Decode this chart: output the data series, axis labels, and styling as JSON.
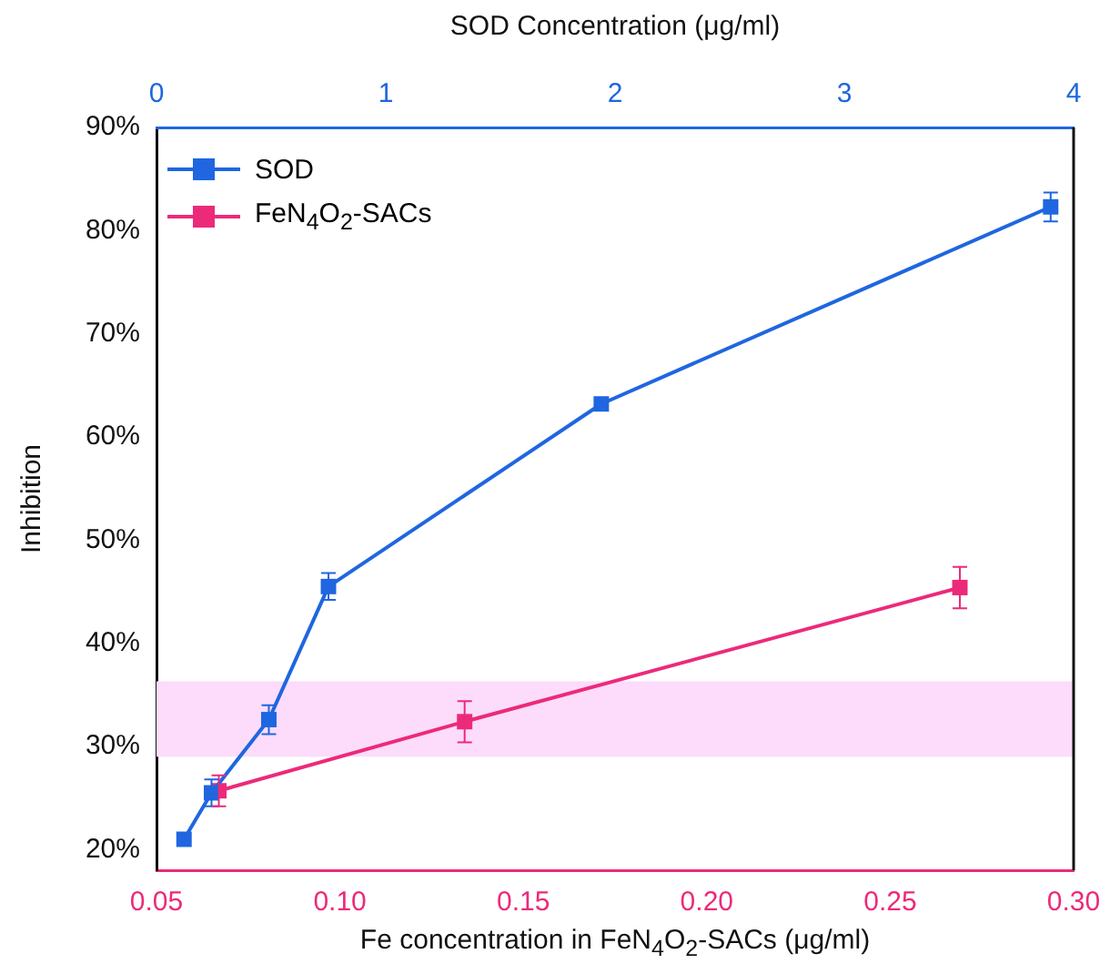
{
  "chart_data": {
    "type": "line",
    "xlabel": "Fe concentration in FeN$_{4}$O$_{2}$-SACs (μg/ml)",
    "x2label": "SOD Concentration (μg/ml)",
    "ylabel": "Inhibition",
    "xlim": [
      0.05,
      0.3
    ],
    "xticks": [
      {
        "value": 0.05,
        "label": "0.05"
      },
      {
        "value": 0.1,
        "label": "0.10"
      },
      {
        "value": 0.15,
        "label": "0.15"
      },
      {
        "value": 0.2,
        "label": "0.20"
      },
      {
        "value": 0.25,
        "label": "0.25"
      },
      {
        "value": 0.3,
        "label": "0.30"
      }
    ],
    "x2lim": [
      0,
      4
    ],
    "x2ticks": [
      0,
      1,
      2,
      3,
      4
    ],
    "ylim": [
      18,
      90
    ],
    "yticks": [
      {
        "value": 20,
        "label": "20%"
      },
      {
        "value": 30,
        "label": "30%"
      },
      {
        "value": 40,
        "label": "40%"
      },
      {
        "value": 50,
        "label": "50%"
      },
      {
        "value": 60,
        "label": "60%"
      },
      {
        "value": 70,
        "label": "70%"
      },
      {
        "value": 80,
        "label": "80%"
      },
      {
        "value": 90,
        "label": "90%"
      }
    ],
    "series": [
      {
        "name": "SOD",
        "color": "#1f66e0",
        "axis": "x2",
        "x": [
          0.12,
          0.24,
          0.49,
          0.75,
          1.94,
          3.9
        ],
        "values": [
          21,
          25.5,
          32.6,
          45.5,
          63.2,
          82.3
        ],
        "errors": [
          null,
          1.3,
          1.4,
          1.3,
          null,
          1.4
        ]
      },
      {
        "name": "FeN$_{4}$O$_{2}$-SACs",
        "color": "#ec2a7a",
        "x": [
          0.067,
          0.134,
          0.269
        ],
        "values": [
          25.7,
          32.4,
          45.4
        ],
        "errors": [
          1.5,
          2,
          2
        ]
      }
    ],
    "bands": [
      {
        "axis": "y",
        "from": 29,
        "to": 36.3,
        "color": "#fcdcfa"
      }
    ],
    "marker": "square",
    "line_style": "solid",
    "legend": "top left",
    "grid": false
  }
}
